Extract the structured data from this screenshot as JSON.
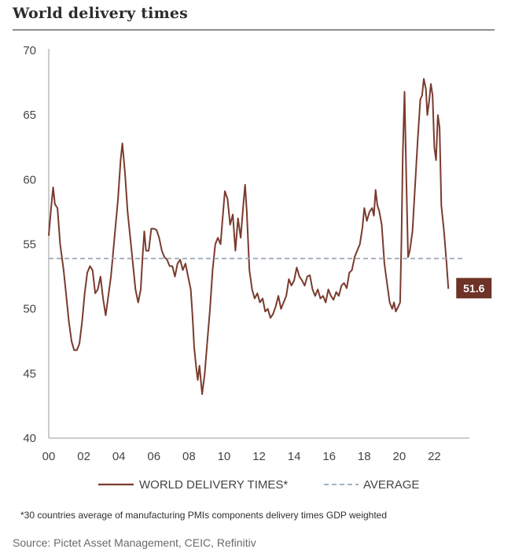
{
  "header": {
    "title": "World delivery times"
  },
  "footnote": "*30 countries average of manufacturing PMIs components delivery times GDP weighted",
  "source": "Source: Pictet Asset Management, CEIC, Refinitiv",
  "colors": {
    "series": "#7a3b2e",
    "average": "#9aa7b5",
    "badge_bg": "#6d3326",
    "badge_text": "#ffffff",
    "axis": "#9a9a9a",
    "text": "#333333"
  },
  "chart_data": {
    "type": "line",
    "title": "World delivery times",
    "xlabel": "",
    "ylabel": "",
    "xlim": [
      2000,
      2024
    ],
    "ylim": [
      40,
      70
    ],
    "xticks": [
      {
        "value": 2000,
        "label": "00"
      },
      {
        "value": 2002,
        "label": "02"
      },
      {
        "value": 2004,
        "label": "04"
      },
      {
        "value": 2006,
        "label": "06"
      },
      {
        "value": 2008,
        "label": "08"
      },
      {
        "value": 2010,
        "label": "10"
      },
      {
        "value": 2012,
        "label": "12"
      },
      {
        "value": 2014,
        "label": "14"
      },
      {
        "value": 2016,
        "label": "16"
      },
      {
        "value": 2018,
        "label": "18"
      },
      {
        "value": 2020,
        "label": "20"
      },
      {
        "value": 2022,
        "label": "22"
      }
    ],
    "yticks": [
      40,
      45,
      50,
      55,
      60,
      65,
      70
    ],
    "grid": false,
    "legend_position": "bottom",
    "series": [
      {
        "name": "WORLD DELIVERY TIMES*",
        "style": "solid",
        "points": [
          [
            2000.0,
            55.7
          ],
          [
            2000.15,
            58.0
          ],
          [
            2000.25,
            59.4
          ],
          [
            2000.35,
            58.1
          ],
          [
            2000.5,
            57.8
          ],
          [
            2000.65,
            55.0
          ],
          [
            2000.85,
            53.0
          ],
          [
            2001.0,
            51.0
          ],
          [
            2001.15,
            49.0
          ],
          [
            2001.3,
            47.5
          ],
          [
            2001.45,
            46.8
          ],
          [
            2001.6,
            46.8
          ],
          [
            2001.75,
            47.3
          ],
          [
            2001.9,
            49.0
          ],
          [
            2002.05,
            51.2
          ],
          [
            2002.2,
            52.8
          ],
          [
            2002.35,
            53.3
          ],
          [
            2002.5,
            53.0
          ],
          [
            2002.65,
            51.2
          ],
          [
            2002.8,
            51.5
          ],
          [
            2002.95,
            52.5
          ],
          [
            2003.1,
            50.8
          ],
          [
            2003.25,
            49.5
          ],
          [
            2003.4,
            51.0
          ],
          [
            2003.55,
            52.5
          ],
          [
            2003.75,
            55.5
          ],
          [
            2003.95,
            58.5
          ],
          [
            2004.1,
            61.5
          ],
          [
            2004.2,
            62.8
          ],
          [
            2004.35,
            60.5
          ],
          [
            2004.5,
            57.5
          ],
          [
            2004.65,
            55.5
          ],
          [
            2004.8,
            53.5
          ],
          [
            2004.95,
            51.5
          ],
          [
            2005.1,
            50.5
          ],
          [
            2005.25,
            51.5
          ],
          [
            2005.35,
            54.0
          ],
          [
            2005.45,
            56.0
          ],
          [
            2005.55,
            54.5
          ],
          [
            2005.7,
            54.5
          ],
          [
            2005.85,
            56.2
          ],
          [
            2006.0,
            56.2
          ],
          [
            2006.15,
            56.1
          ],
          [
            2006.3,
            55.5
          ],
          [
            2006.45,
            54.5
          ],
          [
            2006.6,
            54.0
          ],
          [
            2006.75,
            53.8
          ],
          [
            2006.9,
            53.3
          ],
          [
            2007.05,
            53.3
          ],
          [
            2007.2,
            52.5
          ],
          [
            2007.35,
            53.5
          ],
          [
            2007.5,
            53.8
          ],
          [
            2007.65,
            53.0
          ],
          [
            2007.8,
            53.5
          ],
          [
            2007.95,
            52.5
          ],
          [
            2008.1,
            51.5
          ],
          [
            2008.2,
            49.5
          ],
          [
            2008.3,
            47.0
          ],
          [
            2008.4,
            45.6
          ],
          [
            2008.5,
            44.5
          ],
          [
            2008.6,
            45.6
          ],
          [
            2008.75,
            43.4
          ],
          [
            2008.9,
            45.0
          ],
          [
            2009.05,
            47.5
          ],
          [
            2009.2,
            50.0
          ],
          [
            2009.35,
            53.0
          ],
          [
            2009.5,
            55.0
          ],
          [
            2009.65,
            55.5
          ],
          [
            2009.8,
            55.0
          ],
          [
            2009.95,
            57.5
          ],
          [
            2010.05,
            59.1
          ],
          [
            2010.2,
            58.5
          ],
          [
            2010.35,
            56.5
          ],
          [
            2010.5,
            57.3
          ],
          [
            2010.65,
            54.5
          ],
          [
            2010.8,
            57.0
          ],
          [
            2010.95,
            55.5
          ],
          [
            2011.1,
            58.0
          ],
          [
            2011.2,
            59.6
          ],
          [
            2011.3,
            57.5
          ],
          [
            2011.45,
            53.0
          ],
          [
            2011.6,
            51.5
          ],
          [
            2011.75,
            50.8
          ],
          [
            2011.9,
            51.2
          ],
          [
            2012.05,
            50.5
          ],
          [
            2012.2,
            50.8
          ],
          [
            2012.35,
            49.8
          ],
          [
            2012.5,
            50.0
          ],
          [
            2012.65,
            49.3
          ],
          [
            2012.8,
            49.6
          ],
          [
            2012.95,
            50.2
          ],
          [
            2013.1,
            51.0
          ],
          [
            2013.25,
            50.0
          ],
          [
            2013.4,
            50.5
          ],
          [
            2013.55,
            51.0
          ],
          [
            2013.7,
            52.3
          ],
          [
            2013.85,
            51.8
          ],
          [
            2014.0,
            52.2
          ],
          [
            2014.15,
            53.2
          ],
          [
            2014.3,
            52.5
          ],
          [
            2014.45,
            52.2
          ],
          [
            2014.6,
            51.8
          ],
          [
            2014.75,
            52.5
          ],
          [
            2014.9,
            52.6
          ],
          [
            2015.05,
            51.5
          ],
          [
            2015.2,
            51.0
          ],
          [
            2015.35,
            51.5
          ],
          [
            2015.5,
            50.8
          ],
          [
            2015.65,
            51.0
          ],
          [
            2015.8,
            50.5
          ],
          [
            2015.95,
            51.5
          ],
          [
            2016.1,
            51.0
          ],
          [
            2016.25,
            50.7
          ],
          [
            2016.4,
            51.3
          ],
          [
            2016.55,
            51.0
          ],
          [
            2016.7,
            51.8
          ],
          [
            2016.85,
            52.0
          ],
          [
            2017.0,
            51.6
          ],
          [
            2017.15,
            52.8
          ],
          [
            2017.3,
            53.0
          ],
          [
            2017.45,
            54.0
          ],
          [
            2017.6,
            54.5
          ],
          [
            2017.75,
            55.0
          ],
          [
            2017.9,
            56.3
          ],
          [
            2018.0,
            57.8
          ],
          [
            2018.15,
            56.8
          ],
          [
            2018.3,
            57.5
          ],
          [
            2018.45,
            57.8
          ],
          [
            2018.55,
            57.2
          ],
          [
            2018.65,
            59.2
          ],
          [
            2018.75,
            58.0
          ],
          [
            2018.85,
            57.6
          ],
          [
            2019.0,
            56.5
          ],
          [
            2019.15,
            53.5
          ],
          [
            2019.3,
            52.0
          ],
          [
            2019.45,
            50.5
          ],
          [
            2019.6,
            50.0
          ],
          [
            2019.7,
            50.5
          ],
          [
            2019.8,
            49.8
          ],
          [
            2019.95,
            50.2
          ],
          [
            2020.05,
            50.5
          ],
          [
            2020.12,
            55.0
          ],
          [
            2020.2,
            62.0
          ],
          [
            2020.3,
            66.8
          ],
          [
            2020.4,
            60.0
          ],
          [
            2020.5,
            54.0
          ],
          [
            2020.6,
            54.5
          ],
          [
            2020.75,
            56.0
          ],
          [
            2020.9,
            59.5
          ],
          [
            2021.05,
            63.0
          ],
          [
            2021.2,
            66.2
          ],
          [
            2021.3,
            66.5
          ],
          [
            2021.4,
            67.8
          ],
          [
            2021.52,
            67.0
          ],
          [
            2021.6,
            65.0
          ],
          [
            2021.7,
            66.0
          ],
          [
            2021.8,
            67.4
          ],
          [
            2021.9,
            66.5
          ],
          [
            2022.0,
            62.5
          ],
          [
            2022.1,
            61.5
          ],
          [
            2022.2,
            65.0
          ],
          [
            2022.3,
            64.0
          ],
          [
            2022.4,
            58.0
          ],
          [
            2022.55,
            56.0
          ],
          [
            2022.7,
            53.5
          ],
          [
            2022.8,
            51.6
          ]
        ]
      },
      {
        "name": "AVERAGE",
        "style": "dashed",
        "points": [
          [
            2000.0,
            53.9
          ],
          [
            2023.7,
            53.9
          ]
        ]
      }
    ],
    "annotations": [
      {
        "type": "value_badge",
        "text": "51.6",
        "x": 2022.8,
        "y": 51.6
      }
    ]
  }
}
